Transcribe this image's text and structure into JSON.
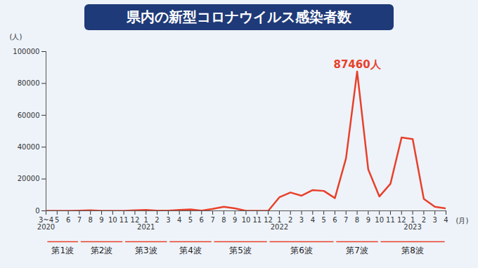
{
  "chart_data": {
    "type": "line",
    "title": "県内の新型コロナウイルス感染者数",
    "y_label": "(人)",
    "x_label": "(月)",
    "categories": [
      "3~4\n2020",
      "5",
      "6",
      "7",
      "8",
      "9",
      "10",
      "11",
      "12",
      "1\n2021",
      "2",
      "3",
      "4",
      "5",
      "6",
      "7",
      "8",
      "9",
      "10",
      "11",
      "12",
      "1\n2022",
      "2",
      "3",
      "4",
      "5",
      "6",
      "7",
      "8",
      "9",
      "10",
      "11",
      "12",
      "1\n2023",
      "2",
      "3",
      "4"
    ],
    "values": [
      17,
      0,
      0,
      150,
      300,
      20,
      30,
      50,
      300,
      600,
      100,
      60,
      500,
      900,
      100,
      1200,
      2500,
      1500,
      50,
      10,
      30,
      8500,
      11500,
      9500,
      13000,
      12500,
      8000,
      33000,
      87460,
      26000,
      9000,
      17000,
      46000,
      45000,
      7500,
      2500,
      1500
    ],
    "color": "#e8402a",
    "ylim": [
      0,
      100000
    ],
    "yticks": [
      0,
      20000,
      40000,
      60000,
      80000,
      100000
    ],
    "grid": false,
    "annotations": [
      {
        "text": "87460人",
        "category_index": 28,
        "value": 87460
      }
    ],
    "waves": [
      {
        "label": "第1波",
        "from": 0,
        "to": 3
      },
      {
        "label": "第2波",
        "from": 3,
        "to": 7
      },
      {
        "label": "第3波",
        "from": 7,
        "to": 11
      },
      {
        "label": "第4波",
        "from": 11,
        "to": 15
      },
      {
        "label": "第5波",
        "from": 15,
        "to": 20
      },
      {
        "label": "第6波",
        "from": 20,
        "to": 26
      },
      {
        "label": "第7波",
        "from": 26,
        "to": 30
      },
      {
        "label": "第8波",
        "from": 30,
        "to": 36
      }
    ]
  }
}
